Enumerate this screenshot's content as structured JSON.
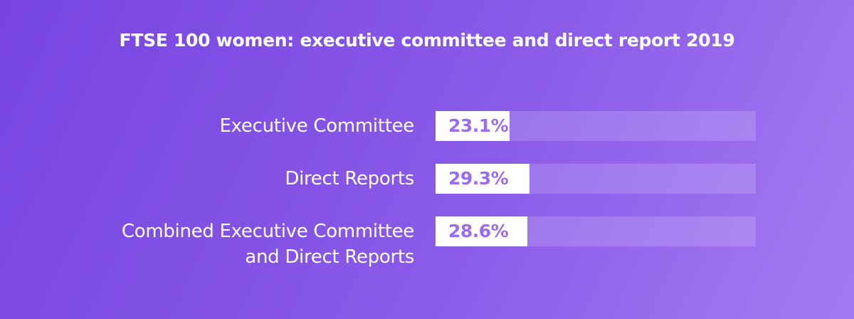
{
  "colors": {
    "accent": "#8a5ae8",
    "bar_fill": "#ffffff",
    "value_text": "#9b6cf0"
  },
  "chart_data": {
    "type": "bar",
    "orientation": "horizontal",
    "title": "FTSE 100 women: executive committee and direct report 2019",
    "categories": [
      "Executive Committee",
      "Direct Reports",
      "Combined Executive Committee and Direct Reports"
    ],
    "category_lines": [
      [
        "Executive Committee"
      ],
      [
        "Direct Reports"
      ],
      [
        "Combined Executive Committee",
        "and Direct Reports"
      ]
    ],
    "values": [
      23.1,
      29.3,
      28.6
    ],
    "value_labels": [
      "23.1%",
      "29.3%",
      "28.6%"
    ],
    "unit": "%",
    "xlim": [
      0,
      100
    ],
    "grid": false,
    "legend": "none"
  }
}
